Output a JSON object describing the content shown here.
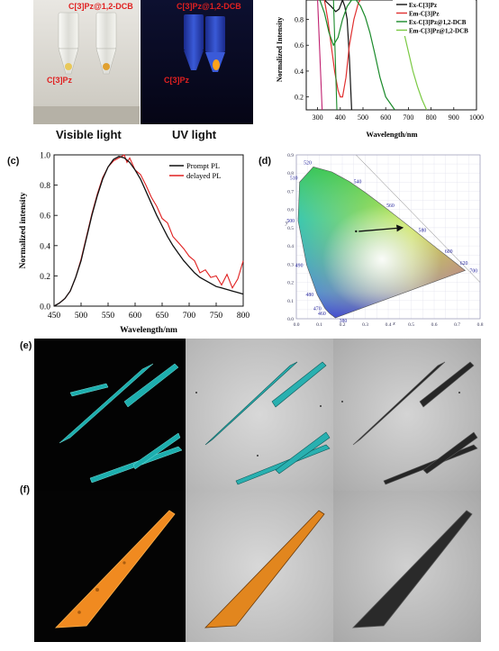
{
  "panel_a": {
    "visible_caption": "Visible light",
    "uv_caption": "UV light",
    "label_dcb_left": "C[3]Pz@1,2-DCB",
    "label_pz_left": "C[3]Pz",
    "label_dcb_right": "C[3]Pz@1,2-DCB",
    "label_pz_right": "C[3]Pz"
  },
  "panel_b": {
    "ylabel": "Normalized Intensity",
    "xlabel": "Wavelength/nm",
    "x_ticks": [
      "300",
      "400",
      "500",
      "600",
      "700",
      "800",
      "900",
      "1000"
    ],
    "y_ticks": [
      "0.2",
      "0.4",
      "0.6",
      "0.8"
    ],
    "legend": [
      {
        "name": "Ex-C[3]Pz",
        "color": "#111111"
      },
      {
        "name": "Em-C[3]Pz",
        "color": "#e03030"
      },
      {
        "name": "Ex-C[3]Pz@1,2-DCB",
        "color": "#1a8a2a"
      },
      {
        "name": "Em-C[3]Pz@1,2-DCB",
        "color": "#7ac943"
      }
    ]
  },
  "panel_c": {
    "letter": "(c)",
    "ylabel": "Normalized intensity",
    "xlabel": "Wavelength/nm",
    "x_ticks": [
      "450",
      "500",
      "550",
      "600",
      "650",
      "700",
      "750",
      "800"
    ],
    "y_ticks": [
      "0.0",
      "0.2",
      "0.4",
      "0.6",
      "0.8",
      "1.0"
    ],
    "legend": [
      {
        "name": "Prompt PL",
        "color": "#111111"
      },
      {
        "name": "delayed PL",
        "color": "#e02020"
      }
    ]
  },
  "panel_d": {
    "letter": "(d)",
    "xlabel": "x",
    "ylabel": "y",
    "x_ticks": [
      "0.0",
      "0.1",
      "0.2",
      "0.3",
      "0.4",
      "0.5",
      "0.6",
      "0.7",
      "0.8"
    ],
    "y_ticks": [
      "0.0",
      "0.1",
      "0.2",
      "0.3",
      "0.4",
      "0.5",
      "0.6",
      "0.7",
      "0.8",
      "0.9"
    ],
    "locus_labels": [
      "380",
      "460",
      "470",
      "480",
      "490",
      "500",
      "510",
      "520",
      "540",
      "560",
      "580",
      "600",
      "620",
      "700"
    ],
    "arrow_from": [
      0.26,
      0.48
    ],
    "arrow_to": [
      0.47,
      0.5
    ]
  },
  "panel_e": {
    "letter": "(e)"
  },
  "panel_f": {
    "letter": "(f)"
  },
  "chart_data": [
    {
      "type": "line",
      "panel": "b",
      "xlabel": "Wavelength/nm",
      "ylabel": "Normalized Intensity",
      "xlim": [
        250,
        1000
      ],
      "ylim": [
        0.1,
        0.95
      ],
      "series": [
        {
          "name": "Ex-C[3]Pz",
          "x": [
            330,
            360,
            380,
            395,
            410,
            420,
            430,
            440,
            450
          ],
          "y": [
            0.95,
            0.9,
            0.86,
            0.88,
            0.95,
            0.9,
            0.8,
            0.5,
            0.1
          ]
        },
        {
          "name": "Em-C[3]Pz",
          "x": [
            330,
            345,
            360,
            375,
            390,
            400,
            410,
            425,
            440,
            460,
            480,
            500
          ],
          "y": [
            0.95,
            0.8,
            0.6,
            0.4,
            0.25,
            0.2,
            0.2,
            0.35,
            0.6,
            0.8,
            0.93,
            0.98
          ]
        },
        {
          "name": "Ex-C[3]Pz@1,2-DCB",
          "x": [
            310,
            330,
            350,
            370,
            390,
            410,
            430,
            450,
            470,
            490,
            510,
            530,
            550,
            575,
            600,
            640
          ],
          "y": [
            0.95,
            0.85,
            0.7,
            0.6,
            0.66,
            0.8,
            0.9,
            0.95,
            0.95,
            0.9,
            0.82,
            0.7,
            0.55,
            0.35,
            0.2,
            0.1
          ]
        },
        {
          "name": "Em-C[3]Pz@1,2-DCB",
          "x": [
            640,
            660,
            680,
            700,
            720,
            740,
            760,
            780
          ],
          "y": [
            0.95,
            0.85,
            0.7,
            0.55,
            0.4,
            0.28,
            0.18,
            0.1
          ]
        }
      ]
    },
    {
      "type": "line",
      "panel": "c",
      "xlabel": "Wavelength/nm",
      "ylabel": "Normalized intensity",
      "xlim": [
        450,
        800
      ],
      "ylim": [
        0,
        1.0
      ],
      "series": [
        {
          "name": "Prompt PL",
          "x": [
            450,
            460,
            470,
            480,
            490,
            500,
            510,
            520,
            530,
            540,
            550,
            560,
            570,
            580,
            590,
            600,
            610,
            620,
            630,
            640,
            650,
            660,
            670,
            680,
            690,
            700,
            710,
            720,
            730,
            740,
            750,
            760,
            770,
            780,
            790,
            800
          ],
          "y": [
            0.0,
            0.02,
            0.05,
            0.1,
            0.19,
            0.3,
            0.45,
            0.6,
            0.73,
            0.84,
            0.92,
            0.97,
            0.99,
            0.98,
            0.95,
            0.9,
            0.84,
            0.76,
            0.68,
            0.6,
            0.53,
            0.46,
            0.4,
            0.35,
            0.3,
            0.26,
            0.22,
            0.19,
            0.17,
            0.15,
            0.13,
            0.12,
            0.11,
            0.1,
            0.09,
            0.08
          ]
        },
        {
          "name": "delayed PL",
          "x": [
            450,
            460,
            470,
            480,
            490,
            500,
            510,
            520,
            530,
            540,
            550,
            560,
            570,
            580,
            585,
            590,
            600,
            610,
            620,
            630,
            640,
            650,
            660,
            670,
            680,
            690,
            700,
            710,
            720,
            730,
            740,
            750,
            760,
            770,
            780,
            790,
            800
          ],
          "y": [
            0.0,
            0.02,
            0.05,
            0.1,
            0.19,
            0.31,
            0.46,
            0.61,
            0.74,
            0.85,
            0.92,
            0.96,
            0.98,
            1.0,
            0.95,
            0.98,
            0.9,
            0.87,
            0.8,
            0.72,
            0.66,
            0.58,
            0.55,
            0.46,
            0.42,
            0.38,
            0.33,
            0.3,
            0.22,
            0.24,
            0.19,
            0.2,
            0.14,
            0.21,
            0.12,
            0.18,
            0.3
          ]
        }
      ]
    }
  ]
}
